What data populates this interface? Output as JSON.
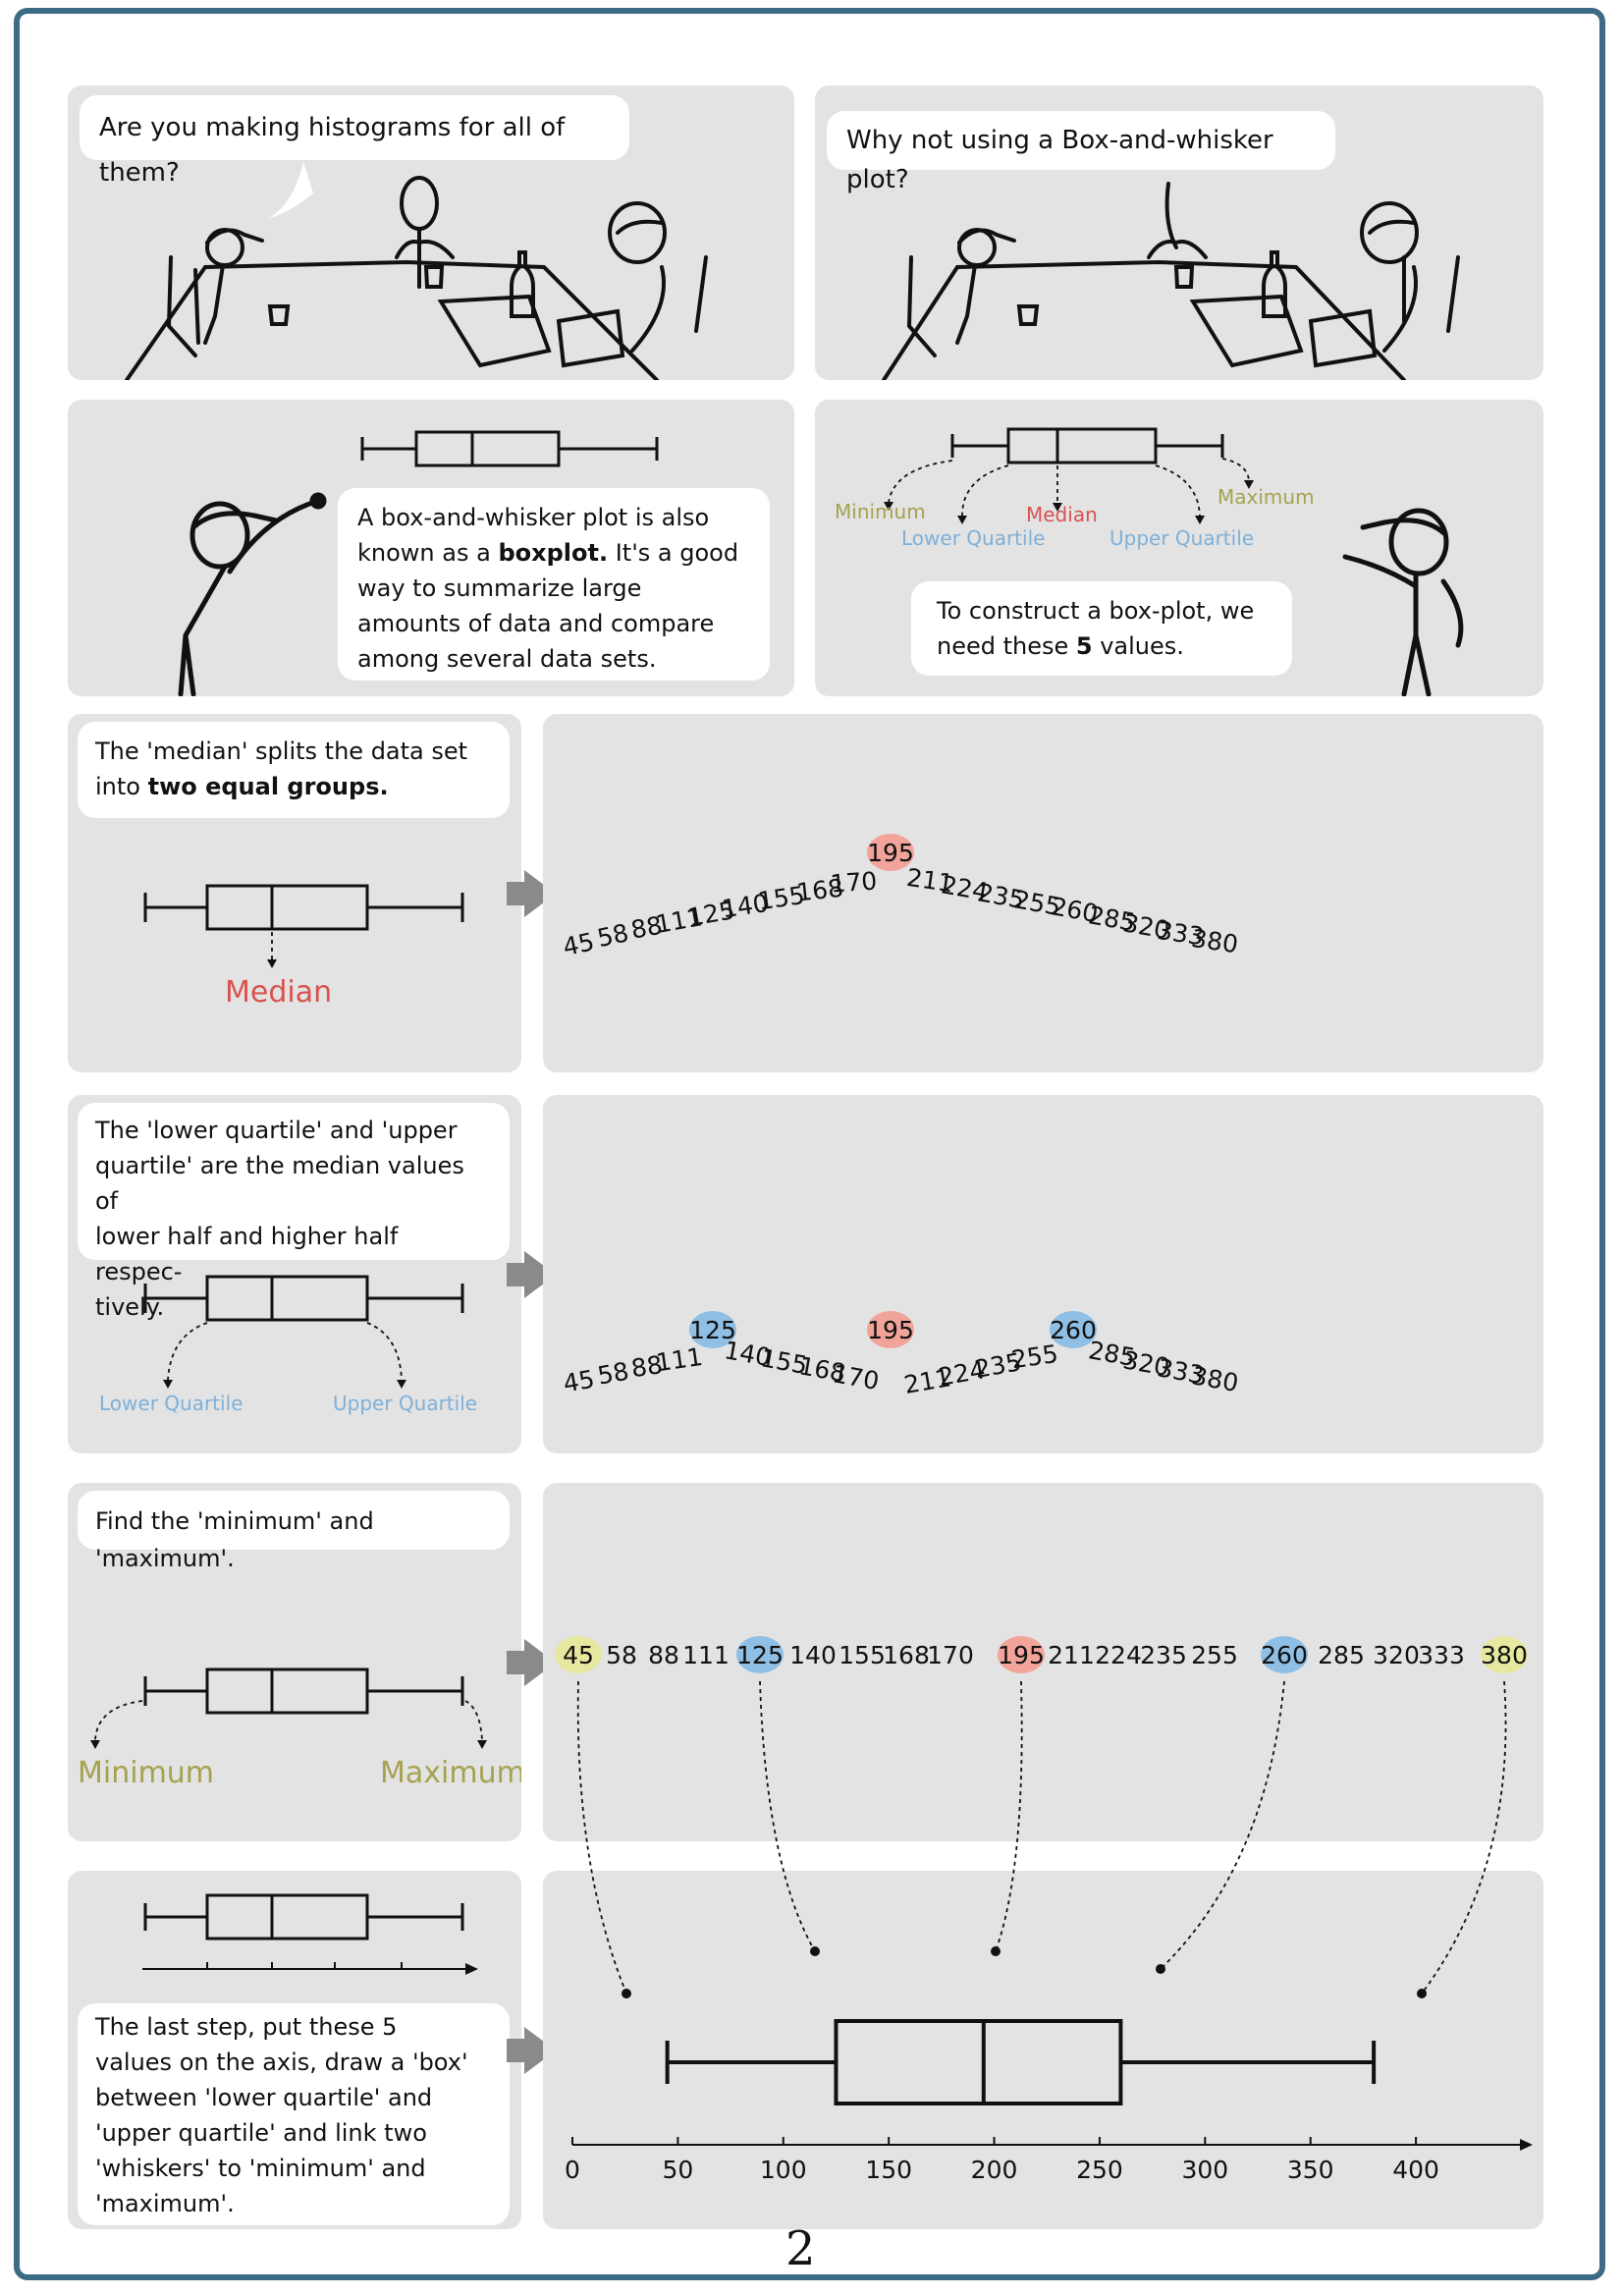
{
  "page_number": "2",
  "colors": {
    "frame": "#3d6b86",
    "median": "#d9534f",
    "quartile": "#7fb0d8",
    "minmax": "#a6a24f",
    "median_hl": "#f2a39a",
    "quartile_hl": "#8fbfe4",
    "minmax_hl": "#e6e8a0"
  },
  "panel1": {
    "speech": "Are you making histograms for all of them?"
  },
  "panel2": {
    "speech": "Why not using a Box-and-whisker plot?"
  },
  "panel3": {
    "line1": "A box-and-whisker plot is also",
    "line2_pre": "known as a ",
    "line2_bold": "boxplot.",
    "line2_post": " It's a good",
    "line3": "way to summarize large",
    "line4": "amounts of data and compare",
    "line5": "among several data sets."
  },
  "panel4": {
    "labels": {
      "minimum": "Minimum",
      "lower": "Lower Quartile",
      "median": "Median",
      "upper": "Upper Quartile",
      "maximum": "Maximum"
    },
    "line1": "To construct a box-plot, we",
    "line2_pre": "need these ",
    "line2_bold": "5",
    "line2_post": " values."
  },
  "panel5": {
    "line1": "The 'median' splits the data set",
    "line2_pre": "into ",
    "line2_bold": "two equal groups.",
    "label": "Median"
  },
  "panel7": {
    "line1": "The 'lower quartile' and 'upper",
    "line2": "quartile' are the median values of",
    "line3": "lower half and higher half respec-",
    "line4": "tively.",
    "lower": "Lower Quartile",
    "upper": "Upper Quartile"
  },
  "panel9": {
    "text": "Find the 'minimum' and 'maximum'.",
    "minimum": "Minimum",
    "maximum": "Maximum"
  },
  "panel11": {
    "line1": "The last step, put these 5",
    "line2": "values on the axis, draw a 'box'",
    "line3": "between 'lower quartile' and",
    "line4": "'upper quartile'  and link two",
    "line5": "'whiskers' to 'minimum' and",
    "line6": "'maximum'."
  },
  "dataset": [
    "45",
    "58",
    "88",
    "111",
    "125",
    "140",
    "155",
    "168",
    "170",
    "195",
    "211",
    "224",
    "235",
    "255",
    "260",
    "285",
    "320",
    "333",
    "380"
  ],
  "chart_data": {
    "type": "boxplot",
    "values": [
      45,
      58,
      88,
      111,
      125,
      140,
      155,
      168,
      170,
      195,
      211,
      224,
      235,
      255,
      260,
      285,
      320,
      333,
      380
    ],
    "minimum": 45,
    "lower_quartile": 125,
    "median": 195,
    "upper_quartile": 260,
    "maximum": 380,
    "x_ticks": [
      "0",
      "50",
      "100",
      "150",
      "200",
      "250",
      "300",
      "350",
      "400"
    ],
    "xlim": [
      0,
      440
    ]
  }
}
